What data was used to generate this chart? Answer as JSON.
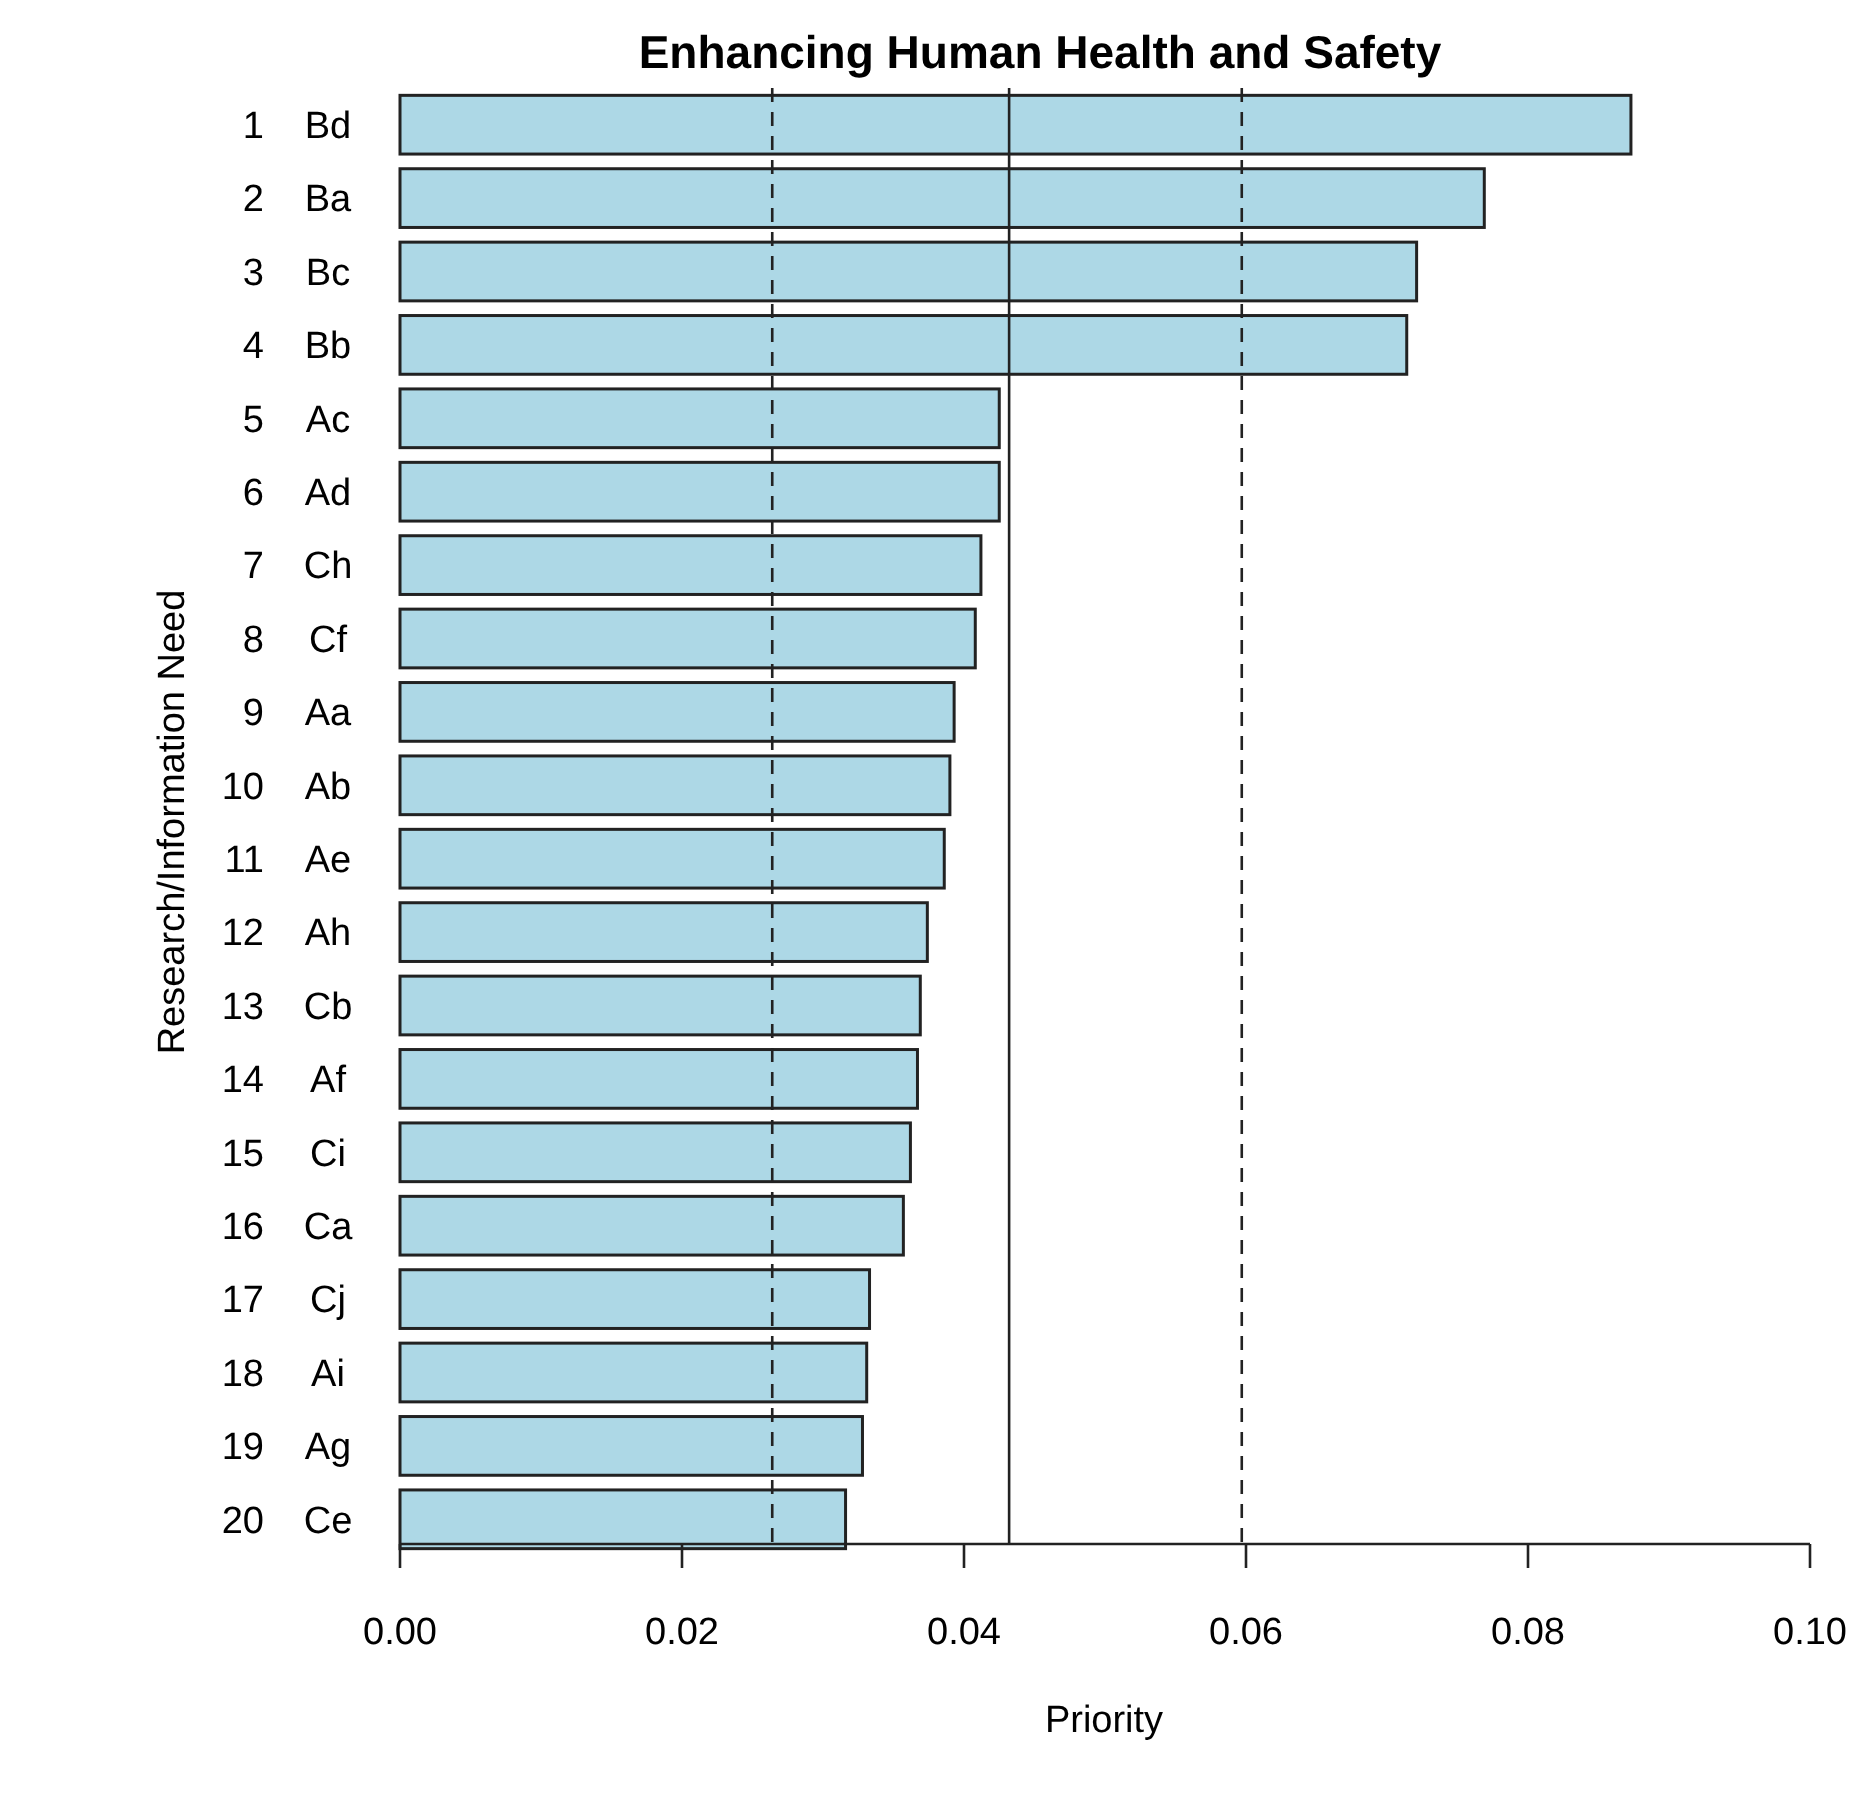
{
  "chart_data": {
    "type": "bar",
    "orientation": "horizontal",
    "title": "Enhancing Human Health and Safety",
    "xlabel": "Priority",
    "ylabel": "Research/Information Need",
    "categories": [
      "1 Bd",
      "2 Ba",
      "3 Bc",
      "4 Bb",
      "5 Ac",
      "6 Ad",
      "7 Ch",
      "8 Cf",
      "9 Aa",
      "10 Ab",
      "11 Ae",
      "12 Ah",
      "13 Cb",
      "14 Af",
      "15 Ci",
      "16 Ca",
      "17 Cj",
      "18 Ai",
      "19 Ag",
      "20 Ce"
    ],
    "values": [
      0.0873,
      0.0769,
      0.0721,
      0.0714,
      0.0425,
      0.0425,
      0.0412,
      0.0408,
      0.0393,
      0.039,
      0.0386,
      0.0374,
      0.0369,
      0.0367,
      0.0362,
      0.0357,
      0.0333,
      0.0331,
      0.0328,
      0.0316
    ],
    "color": "#add8e6",
    "xlim": [
      0,
      0.1
    ],
    "xticks": [
      {
        "value": 0,
        "label": "0.00"
      },
      {
        "value": 0.02,
        "label": "0.02"
      },
      {
        "value": 0.04,
        "label": "0.04"
      },
      {
        "value": 0.06,
        "label": "0.06"
      },
      {
        "value": 0.08,
        "label": "0.08"
      },
      {
        "value": 0.1,
        "label": "0.10"
      }
    ],
    "ref_lines": [
      {
        "axis": "x",
        "value": 0.0264,
        "line_style": "dashed"
      },
      {
        "axis": "x",
        "value": 0.0432,
        "line_style": "solid"
      },
      {
        "axis": "x",
        "value": 0.0597,
        "line_style": "dashed"
      }
    ]
  }
}
